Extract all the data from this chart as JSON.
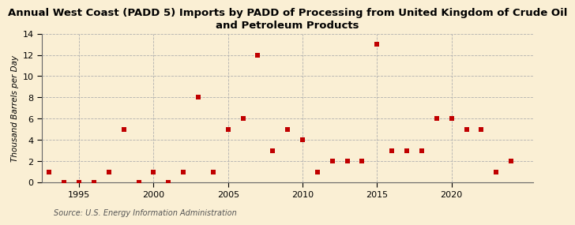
{
  "title": "Annual West Coast (PADD 5) Imports by PADD of Processing from United Kingdom of Crude Oil\nand Petroleum Products",
  "ylabel": "Thousand Barrels per Day",
  "source": "Source: U.S. Energy Information Administration",
  "background_color": "#faefd4",
  "years": [
    1993,
    1994,
    1995,
    1996,
    1997,
    1998,
    1999,
    2000,
    2001,
    2002,
    2003,
    2004,
    2005,
    2006,
    2007,
    2008,
    2009,
    2010,
    2011,
    2012,
    2013,
    2014,
    2015,
    2016,
    2017,
    2018,
    2019,
    2020,
    2021,
    2022,
    2023,
    2024
  ],
  "values": [
    1,
    0,
    0,
    0,
    1,
    5,
    0,
    1,
    0,
    1,
    8,
    1,
    5,
    6,
    12,
    3,
    5,
    4,
    1,
    2,
    2,
    2,
    13,
    3,
    3,
    3,
    6,
    6,
    5,
    5,
    1,
    2
  ],
  "marker_color": "#c00000",
  "marker_size": 5,
  "ylim": [
    0,
    14
  ],
  "yticks": [
    0,
    2,
    4,
    6,
    8,
    10,
    12,
    14
  ],
  "xlim": [
    1992.5,
    2025.5
  ],
  "xticks": [
    1995,
    2000,
    2005,
    2010,
    2015,
    2020
  ],
  "grid_color": "#b0b0b0",
  "title_fontsize": 9.5,
  "ylabel_fontsize": 7.5,
  "tick_fontsize": 8,
  "source_fontsize": 7
}
